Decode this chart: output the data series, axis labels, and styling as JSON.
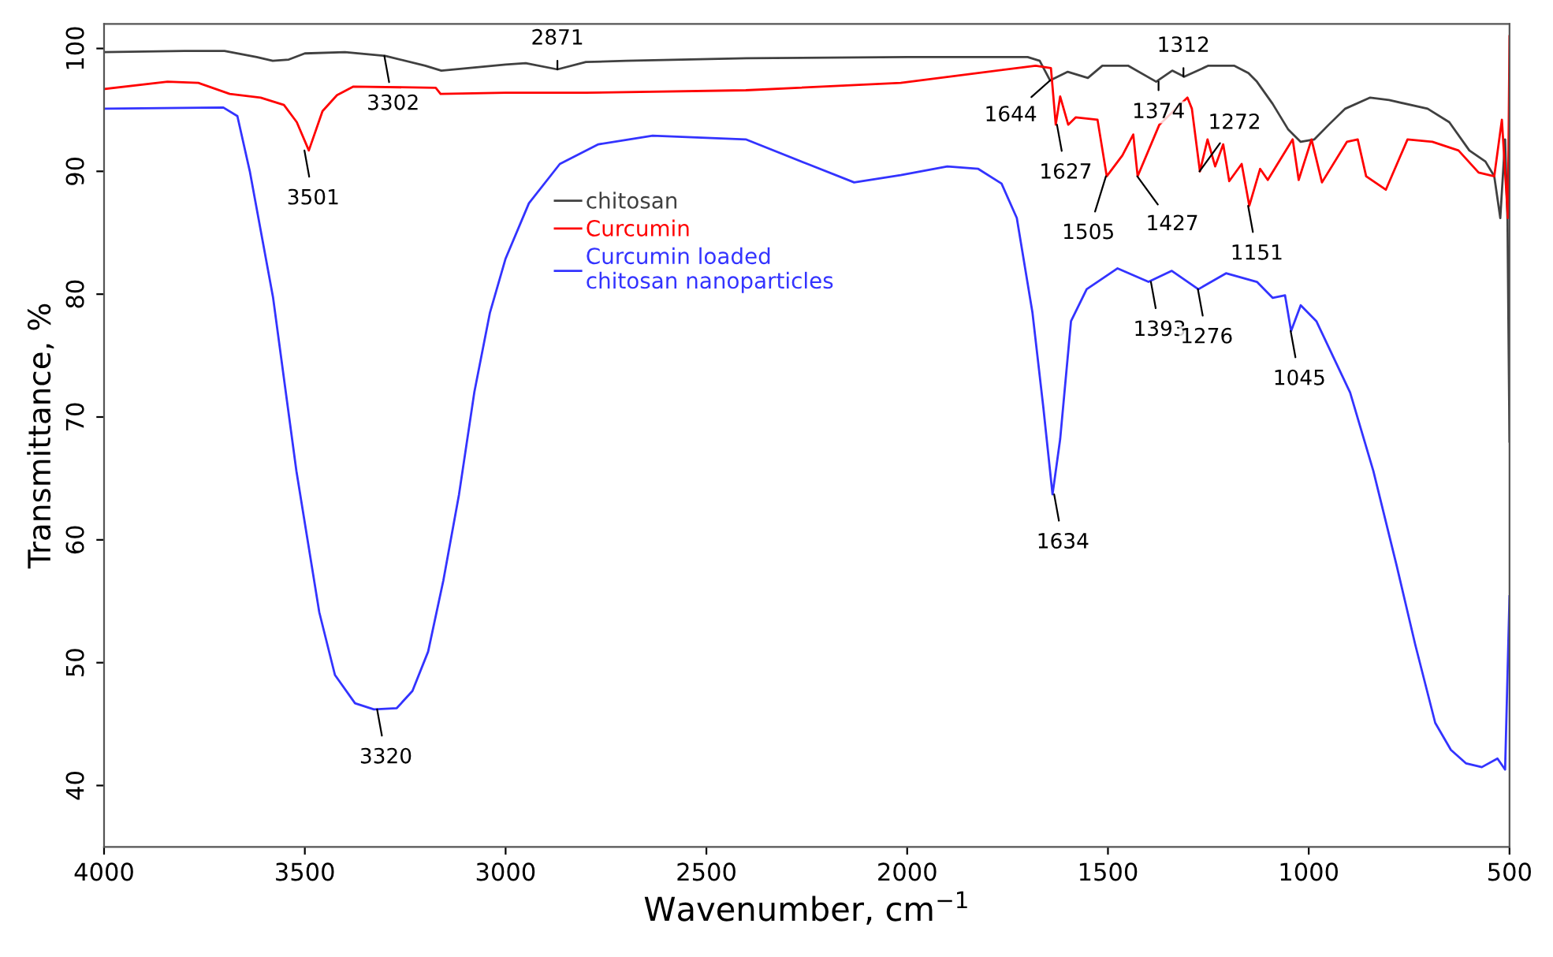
{
  "chart_data": {
    "type": "line",
    "xlabel": "Wavenumber, cm$^{−1}$",
    "ylabel": "Transmittance, %",
    "xlim": [
      4000,
      500
    ],
    "ylim": [
      35,
      102
    ],
    "xticks": [
      4000,
      3500,
      3000,
      2500,
      2000,
      1500,
      1000,
      500
    ],
    "yticks": [
      40,
      50,
      60,
      70,
      80,
      90,
      100
    ],
    "grid": false,
    "legend": "top",
    "marker": "none",
    "line_style": "solid",
    "series": [
      {
        "name": "chitosan",
        "color": "#404040",
        "x": [
          4000,
          3800,
          3700,
          3620,
          3580,
          3540,
          3500,
          3400,
          3300,
          3200,
          3160,
          3000,
          2950,
          2871,
          2800,
          2700,
          2400,
          2000,
          1700,
          1670,
          1644,
          1600,
          1550,
          1514,
          1450,
          1380,
          1340,
          1310,
          1250,
          1186,
          1150,
          1129,
          1090,
          1051,
          1020,
          986,
          950,
          909,
          847,
          800,
          704,
          650,
          600,
          560,
          538,
          523,
          511,
          505,
          500
        ],
        "values": [
          99.7,
          99.8,
          99.8,
          99.3,
          99.0,
          99.1,
          99.6,
          99.7,
          99.4,
          98.6,
          98.2,
          98.7,
          98.8,
          98.3,
          98.9,
          99.0,
          99.2,
          99.3,
          99.3,
          99.0,
          97.4,
          98.1,
          97.6,
          98.6,
          98.6,
          97.3,
          98.2,
          97.7,
          98.6,
          98.6,
          98.0,
          97.3,
          95.5,
          93.4,
          92.4,
          92.6,
          93.8,
          95.1,
          96.0,
          95.8,
          95.1,
          94.0,
          91.7,
          90.8,
          89.6,
          86.2,
          92.6,
          86.0,
          68.0
        ]
      },
      {
        "name": "Curcumin",
        "color": "#ff0000",
        "x": [
          4000,
          3842,
          3765,
          3687,
          3610,
          3552,
          3520,
          3490,
          3456,
          3420,
          3379,
          3174,
          3162,
          3000,
          2800,
          2402,
          2016,
          1680,
          1642,
          1630,
          1619,
          1599,
          1580,
          1526,
          1503,
          1464,
          1437,
          1426,
          1372,
          1302,
          1291,
          1271,
          1252,
          1233,
          1213,
          1198,
          1167,
          1148,
          1121,
          1102,
          1040,
          1025,
          993,
          967,
          905,
          878,
          857,
          808,
          754,
          692,
          627,
          577,
          538,
          519,
          504,
          500
        ],
        "values": [
          96.7,
          97.3,
          97.2,
          96.3,
          96.0,
          95.4,
          94.0,
          91.7,
          94.9,
          96.2,
          96.9,
          96.8,
          96.3,
          96.4,
          96.4,
          96.6,
          97.2,
          98.6,
          98.4,
          93.8,
          96.1,
          93.8,
          94.4,
          94.2,
          89.6,
          91.3,
          93.0,
          89.6,
          93.8,
          96.0,
          95.1,
          90.0,
          92.6,
          90.4,
          92.2,
          89.2,
          90.6,
          87.2,
          90.2,
          89.3,
          92.6,
          89.3,
          92.6,
          89.1,
          92.4,
          92.6,
          89.6,
          88.5,
          92.6,
          92.4,
          91.7,
          89.9,
          89.6,
          94.2,
          86.2,
          101.0
        ]
      },
      {
        "name": "Curcumin loaded\nchitosan nanoparticles",
        "color": "#3333ff",
        "x": [
          4000,
          3703,
          3668,
          3637,
          3579,
          3521,
          3464,
          3425,
          3375,
          3328,
          3271,
          3232,
          3193,
          3155,
          3116,
          3078,
          3039,
          3000,
          2942,
          2865,
          2769,
          2634,
          2402,
          2248,
          2132,
          2016,
          1900,
          1823,
          1765,
          1727,
          1688,
          1661,
          1638,
          1619,
          1592,
          1553,
          1476,
          1399,
          1341,
          1275,
          1206,
          1129,
          1090,
          1059,
          1044,
          1020,
          981,
          897,
          839,
          781,
          735,
          685,
          646,
          608,
          569,
          530,
          511,
          500
        ],
        "values": [
          95.1,
          95.2,
          94.5,
          90.0,
          79.7,
          65.6,
          54.1,
          49.0,
          46.7,
          46.2,
          46.3,
          47.7,
          50.9,
          56.7,
          63.7,
          72.0,
          78.5,
          82.9,
          87.4,
          90.6,
          92.2,
          92.9,
          92.6,
          90.6,
          89.1,
          89.7,
          90.4,
          90.2,
          89.0,
          86.2,
          78.5,
          70.8,
          63.7,
          68.2,
          77.8,
          80.4,
          82.1,
          81.0,
          81.9,
          80.4,
          81.7,
          81.0,
          79.7,
          79.9,
          77.0,
          79.1,
          77.8,
          72.0,
          65.6,
          57.9,
          51.5,
          45.1,
          42.9,
          41.8,
          41.5,
          42.2,
          41.3,
          55.4
        ]
      }
    ],
    "annotations": [
      {
        "text": "3302",
        "x": 3302,
        "y": 99.4
      },
      {
        "text": "3501",
        "x": 3501,
        "y": 91.7
      },
      {
        "text": "2871",
        "x": 2871,
        "y": 98.3
      },
      {
        "text": "1644",
        "x": 1644,
        "y": 97.4
      },
      {
        "text": "1627",
        "x": 1627,
        "y": 93.8
      },
      {
        "text": "1505",
        "x": 1505,
        "y": 89.6
      },
      {
        "text": "1427",
        "x": 1427,
        "y": 89.6
      },
      {
        "text": "1374",
        "x": 1374,
        "y": 97.3
      },
      {
        "text": "1312",
        "x": 1312,
        "y": 97.7
      },
      {
        "text": "1272",
        "x": 1272,
        "y": 90.0
      },
      {
        "text": "1151",
        "x": 1151,
        "y": 87.2
      },
      {
        "text": "3320",
        "x": 3320,
        "y": 46.2
      },
      {
        "text": "1634",
        "x": 1634,
        "y": 63.7
      },
      {
        "text": "1393",
        "x": 1393,
        "y": 81.0
      },
      {
        "text": "1276",
        "x": 1276,
        "y": 80.4
      },
      {
        "text": "1045",
        "x": 1045,
        "y": 77.0
      }
    ]
  }
}
